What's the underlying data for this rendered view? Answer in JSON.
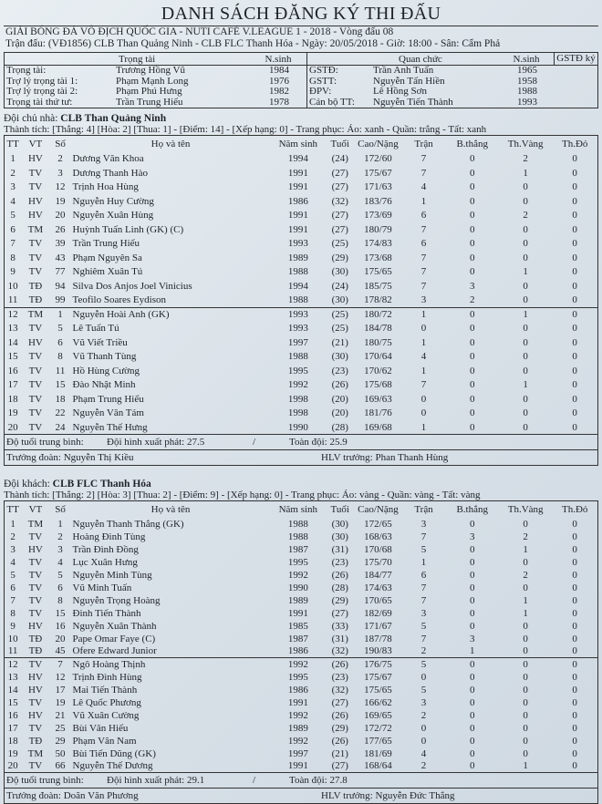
{
  "title": "DANH SÁCH ĐĂNG KÝ THI ĐẤU",
  "league": "GIẢI BÓNG ĐÁ VÔ ĐỊCH QUỐC GIA - NUTI CAFÉ V.LEAGUE 1 - 2018 - Vòng đấu 08",
  "match": "Trận đấu: (VĐ1856) CLB Than Quảng Ninh - CLB FLC Thanh Hóa - Ngày: 20/05/2018 - Giờ: 18:00 - Sân: Cẩm Phả",
  "referees": {
    "header": "Trọng tài",
    "birth_header": "N.sinh",
    "rows": [
      {
        "role": "Trọng tài:",
        "name": "Trương Hồng Vũ",
        "year": "1984"
      },
      {
        "role": "Trợ lý trọng tài 1:",
        "name": "Phạm Mạnh Long",
        "year": "1976"
      },
      {
        "role": "Trợ lý trọng tài 2:",
        "name": "Phạm Phú Hưng",
        "year": "1982"
      },
      {
        "role": "Trọng tài thứ tư:",
        "name": "Trần Trung Hiếu",
        "year": "1978"
      }
    ]
  },
  "officials": {
    "header": "Quan chức",
    "birth_header": "N.sinh",
    "sign_header": "GSTĐ ký",
    "rows": [
      {
        "role": "GSTĐ:",
        "name": "Trần Anh Tuấn",
        "year": "1965"
      },
      {
        "role": "GSTT:",
        "name": "Nguyễn Tấn Hiền",
        "year": "1958"
      },
      {
        "role": "ĐPV:",
        "name": "Lê Hồng Sơn",
        "year": "1988"
      },
      {
        "role": "Cán bộ TT:",
        "name": "Nguyễn Tiến Thành",
        "year": "1993"
      }
    ]
  },
  "columns": [
    "TT",
    "VT",
    "Số",
    "Họ và tên",
    "Năm sinh",
    "Tuổi",
    "Cao/Nặng",
    "Trận",
    "B.thắng",
    "Th.Vàng",
    "Th.Đỏ"
  ],
  "teams": [
    {
      "label": "Đội chủ nhà:",
      "name": "CLB Than Quảng Ninh",
      "record": "Thành tích: [Thắng: 4] [Hòa: 2] [Thua: 1] - [Điểm: 14] - [Xếp hạng: 0] - Trang phục: Áo: xanh - Quần: trắng - Tất: xanh",
      "players": [
        [
          "1",
          "HV",
          "2",
          "Dương Văn Khoa",
          "1994",
          "(24)",
          "172/60",
          "7",
          "0",
          "2",
          "0"
        ],
        [
          "2",
          "TV",
          "3",
          "Dương Thanh Hào",
          "1991",
          "(27)",
          "175/67",
          "7",
          "0",
          "1",
          "0"
        ],
        [
          "3",
          "TV",
          "12",
          "Trịnh Hoa Hùng",
          "1991",
          "(27)",
          "171/63",
          "4",
          "0",
          "0",
          "0"
        ],
        [
          "4",
          "HV",
          "19",
          "Nguyễn Huy Cường",
          "1986",
          "(32)",
          "183/76",
          "1",
          "0",
          "0",
          "0"
        ],
        [
          "5",
          "HV",
          "20",
          "Nguyễn Xuân Hùng",
          "1991",
          "(27)",
          "173/69",
          "6",
          "0",
          "2",
          "0"
        ],
        [
          "6",
          "TM",
          "26",
          "Huỳnh Tuấn Linh (GK) (C)",
          "1991",
          "(27)",
          "180/79",
          "7",
          "0",
          "0",
          "0"
        ],
        [
          "7",
          "TV",
          "39",
          "Trần Trung Hiếu",
          "1993",
          "(25)",
          "174/83",
          "6",
          "0",
          "0",
          "0"
        ],
        [
          "8",
          "TV",
          "43",
          "Phạm Nguyên Sa",
          "1989",
          "(29)",
          "173/68",
          "7",
          "0",
          "0",
          "0"
        ],
        [
          "9",
          "TV",
          "77",
          "Nghiêm Xuân Tú",
          "1988",
          "(30)",
          "175/65",
          "7",
          "0",
          "1",
          "0"
        ],
        [
          "10",
          "TĐ",
          "94",
          "Silva Dos Anjos Joel Vinicius",
          "1994",
          "(24)",
          "185/75",
          "7",
          "3",
          "0",
          "0"
        ],
        [
          "11",
          "TĐ",
          "99",
          "Teofilo Soares Eydison",
          "1988",
          "(30)",
          "178/82",
          "3",
          "2",
          "0",
          "0"
        ],
        [
          "12",
          "TM",
          "1",
          "Nguyễn Hoài Anh (GK)",
          "1993",
          "(25)",
          "180/72",
          "1",
          "0",
          "1",
          "0"
        ],
        [
          "13",
          "TV",
          "5",
          "Lê Tuấn Tú",
          "1993",
          "(25)",
          "184/78",
          "0",
          "0",
          "0",
          "0"
        ],
        [
          "14",
          "HV",
          "6",
          "Vũ Viết Triều",
          "1997",
          "(21)",
          "180/75",
          "1",
          "0",
          "0",
          "0"
        ],
        [
          "15",
          "TV",
          "8",
          "Vũ Thanh Tùng",
          "1988",
          "(30)",
          "170/64",
          "4",
          "0",
          "0",
          "0"
        ],
        [
          "16",
          "TV",
          "11",
          "Hồ Hùng Cường",
          "1995",
          "(23)",
          "170/62",
          "1",
          "0",
          "0",
          "0"
        ],
        [
          "17",
          "TV",
          "15",
          "Đào Nhật Minh",
          "1992",
          "(26)",
          "175/68",
          "7",
          "0",
          "1",
          "0"
        ],
        [
          "18",
          "TV",
          "18",
          "Phạm Trung Hiếu",
          "1998",
          "(20)",
          "169/63",
          "0",
          "0",
          "0",
          "0"
        ],
        [
          "19",
          "TV",
          "22",
          "Nguyễn Văn Tám",
          "1998",
          "(20)",
          "181/76",
          "0",
          "0",
          "0",
          "0"
        ],
        [
          "20",
          "TV",
          "24",
          "Nguyễn Thế Hưng",
          "1990",
          "(28)",
          "169/68",
          "1",
          "0",
          "0",
          "0"
        ]
      ],
      "avg_label": "Độ tuổi trung bình:",
      "avg_start": "Đội hình xuất phát: 27.5",
      "avg_sep": "/",
      "avg_all": "Toàn đội: 25.9",
      "leader": "Trưởng đoàn: Nguyễn Thị Kiều",
      "coach": "HLV trưởng: Phan Thanh Hùng"
    },
    {
      "label": "Đội khách:",
      "name": "CLB FLC Thanh Hóa",
      "record": "Thành tích: [Thắng: 2] [Hòa: 3] [Thua: 2] - [Điểm: 9] - [Xếp hạng: 0] - Trang phục: Áo: vàng - Quần: vàng - Tất: vàng",
      "players": [
        [
          "1",
          "TM",
          "1",
          "Nguyễn Thanh Thắng (GK)",
          "1988",
          "(30)",
          "172/65",
          "3",
          "0",
          "0",
          "0"
        ],
        [
          "2",
          "TV",
          "2",
          "Hoàng Đình Tùng",
          "1988",
          "(30)",
          "168/63",
          "7",
          "3",
          "2",
          "0"
        ],
        [
          "3",
          "HV",
          "3",
          "Trần Đình Đồng",
          "1987",
          "(31)",
          "170/68",
          "5",
          "0",
          "1",
          "0"
        ],
        [
          "4",
          "TV",
          "4",
          "Lục Xuân Hưng",
          "1995",
          "(23)",
          "175/70",
          "1",
          "0",
          "0",
          "0"
        ],
        [
          "5",
          "TV",
          "5",
          "Nguyễn Minh Tùng",
          "1992",
          "(26)",
          "184/77",
          "6",
          "0",
          "2",
          "0"
        ],
        [
          "6",
          "TV",
          "6",
          "Vũ Minh Tuấn",
          "1990",
          "(28)",
          "174/63",
          "7",
          "0",
          "0",
          "0"
        ],
        [
          "7",
          "TV",
          "8",
          "Nguyễn Trọng Hoàng",
          "1989",
          "(29)",
          "170/65",
          "7",
          "0",
          "1",
          "0"
        ],
        [
          "8",
          "TV",
          "15",
          "Đinh Tiến Thành",
          "1991",
          "(27)",
          "182/69",
          "3",
          "0",
          "1",
          "0"
        ],
        [
          "9",
          "HV",
          "16",
          "Nguyễn Xuân Thành",
          "1985",
          "(33)",
          "171/67",
          "5",
          "0",
          "0",
          "0"
        ],
        [
          "10",
          "TĐ",
          "20",
          "Pape Omar Faye (C)",
          "1987",
          "(31)",
          "187/78",
          "7",
          "3",
          "0",
          "0"
        ],
        [
          "11",
          "TĐ",
          "45",
          "Ofere Edward Junior",
          "1986",
          "(32)",
          "190/83",
          "2",
          "1",
          "0",
          "0"
        ],
        [
          "12",
          "TV",
          "7",
          "Ngô Hoàng Thịnh",
          "1992",
          "(26)",
          "176/75",
          "5",
          "0",
          "0",
          "0"
        ],
        [
          "13",
          "HV",
          "12",
          "Trịnh Đình Hùng",
          "1995",
          "(23)",
          "175/67",
          "0",
          "0",
          "0",
          "0"
        ],
        [
          "14",
          "HV",
          "17",
          "Mai Tiến Thành",
          "1986",
          "(32)",
          "175/65",
          "5",
          "0",
          "0",
          "0"
        ],
        [
          "15",
          "TV",
          "19",
          "Lê Quốc Phương",
          "1991",
          "(27)",
          "166/62",
          "3",
          "0",
          "0",
          "0"
        ],
        [
          "16",
          "HV",
          "21",
          "Vũ Xuân Cường",
          "1992",
          "(26)",
          "169/65",
          "2",
          "0",
          "0",
          "0"
        ],
        [
          "17",
          "TV",
          "25",
          "Bùi Văn Hiếu",
          "1989",
          "(29)",
          "172/72",
          "0",
          "0",
          "0",
          "0"
        ],
        [
          "18",
          "TĐ",
          "29",
          "Phạm Văn Nam",
          "1992",
          "(26)",
          "177/65",
          "0",
          "0",
          "0",
          "0"
        ],
        [
          "19",
          "TM",
          "50",
          "Bùi Tiến Dũng (GK)",
          "1997",
          "(21)",
          "181/69",
          "4",
          "0",
          "0",
          "0"
        ],
        [
          "20",
          "TV",
          "66",
          "Nguyễn Thế Dương",
          "1991",
          "(27)",
          "168/64",
          "2",
          "0",
          "1",
          "0"
        ]
      ],
      "avg_label": "Độ tuổi trung bình:",
      "avg_start": "Đội hình xuất phát: 29.1",
      "avg_sep": "/",
      "avg_all": "Toàn đội: 27.8",
      "leader": "Trưởng đoàn: Doãn Văn Phương",
      "coach": "HLV trưởng: Nguyễn Đức Thắng"
    }
  ]
}
